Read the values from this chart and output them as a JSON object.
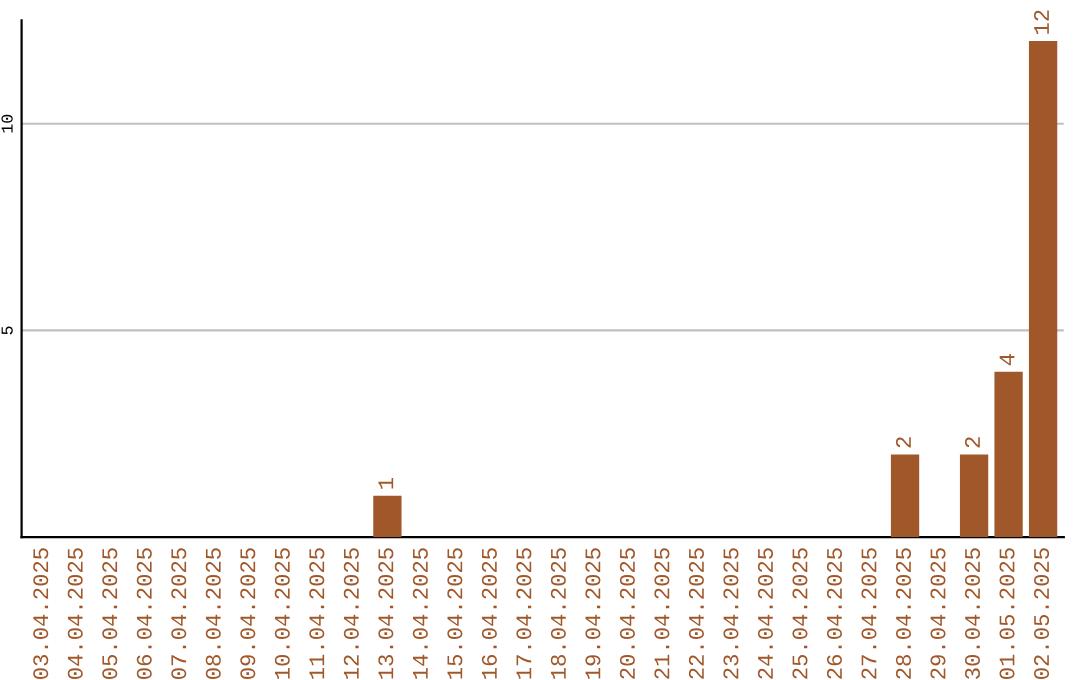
{
  "chart_data": {
    "type": "bar",
    "categories": [
      "03.04.2025",
      "04.04.2025",
      "05.04.2025",
      "06.04.2025",
      "07.04.2025",
      "08.04.2025",
      "09.04.2025",
      "10.04.2025",
      "11.04.2025",
      "12.04.2025",
      "13.04.2025",
      "14.04.2025",
      "15.04.2025",
      "16.04.2025",
      "17.04.2025",
      "18.04.2025",
      "19.04.2025",
      "20.04.2025",
      "21.04.2025",
      "22.04.2025",
      "23.04.2025",
      "24.04.2025",
      "25.04.2025",
      "26.04.2025",
      "27.04.2025",
      "28.04.2025",
      "29.04.2025",
      "30.04.2025",
      "01.05.2025",
      "02.05.2025"
    ],
    "values": [
      0,
      0,
      0,
      0,
      0,
      0,
      0,
      0,
      0,
      0,
      1,
      0,
      0,
      0,
      0,
      0,
      0,
      0,
      0,
      0,
      0,
      0,
      0,
      0,
      0,
      2,
      0,
      2,
      4,
      12
    ],
    "value_labels": [
      null,
      null,
      null,
      null,
      null,
      null,
      null,
      null,
      null,
      null,
      "1",
      null,
      null,
      null,
      null,
      null,
      null,
      null,
      null,
      null,
      null,
      null,
      null,
      null,
      null,
      "2",
      null,
      "2",
      "4",
      "12"
    ],
    "color": "#a0582a",
    "ylim": [
      0,
      12.5
    ],
    "yticks": [
      5,
      10
    ],
    "grid": "y",
    "legend": false
  }
}
